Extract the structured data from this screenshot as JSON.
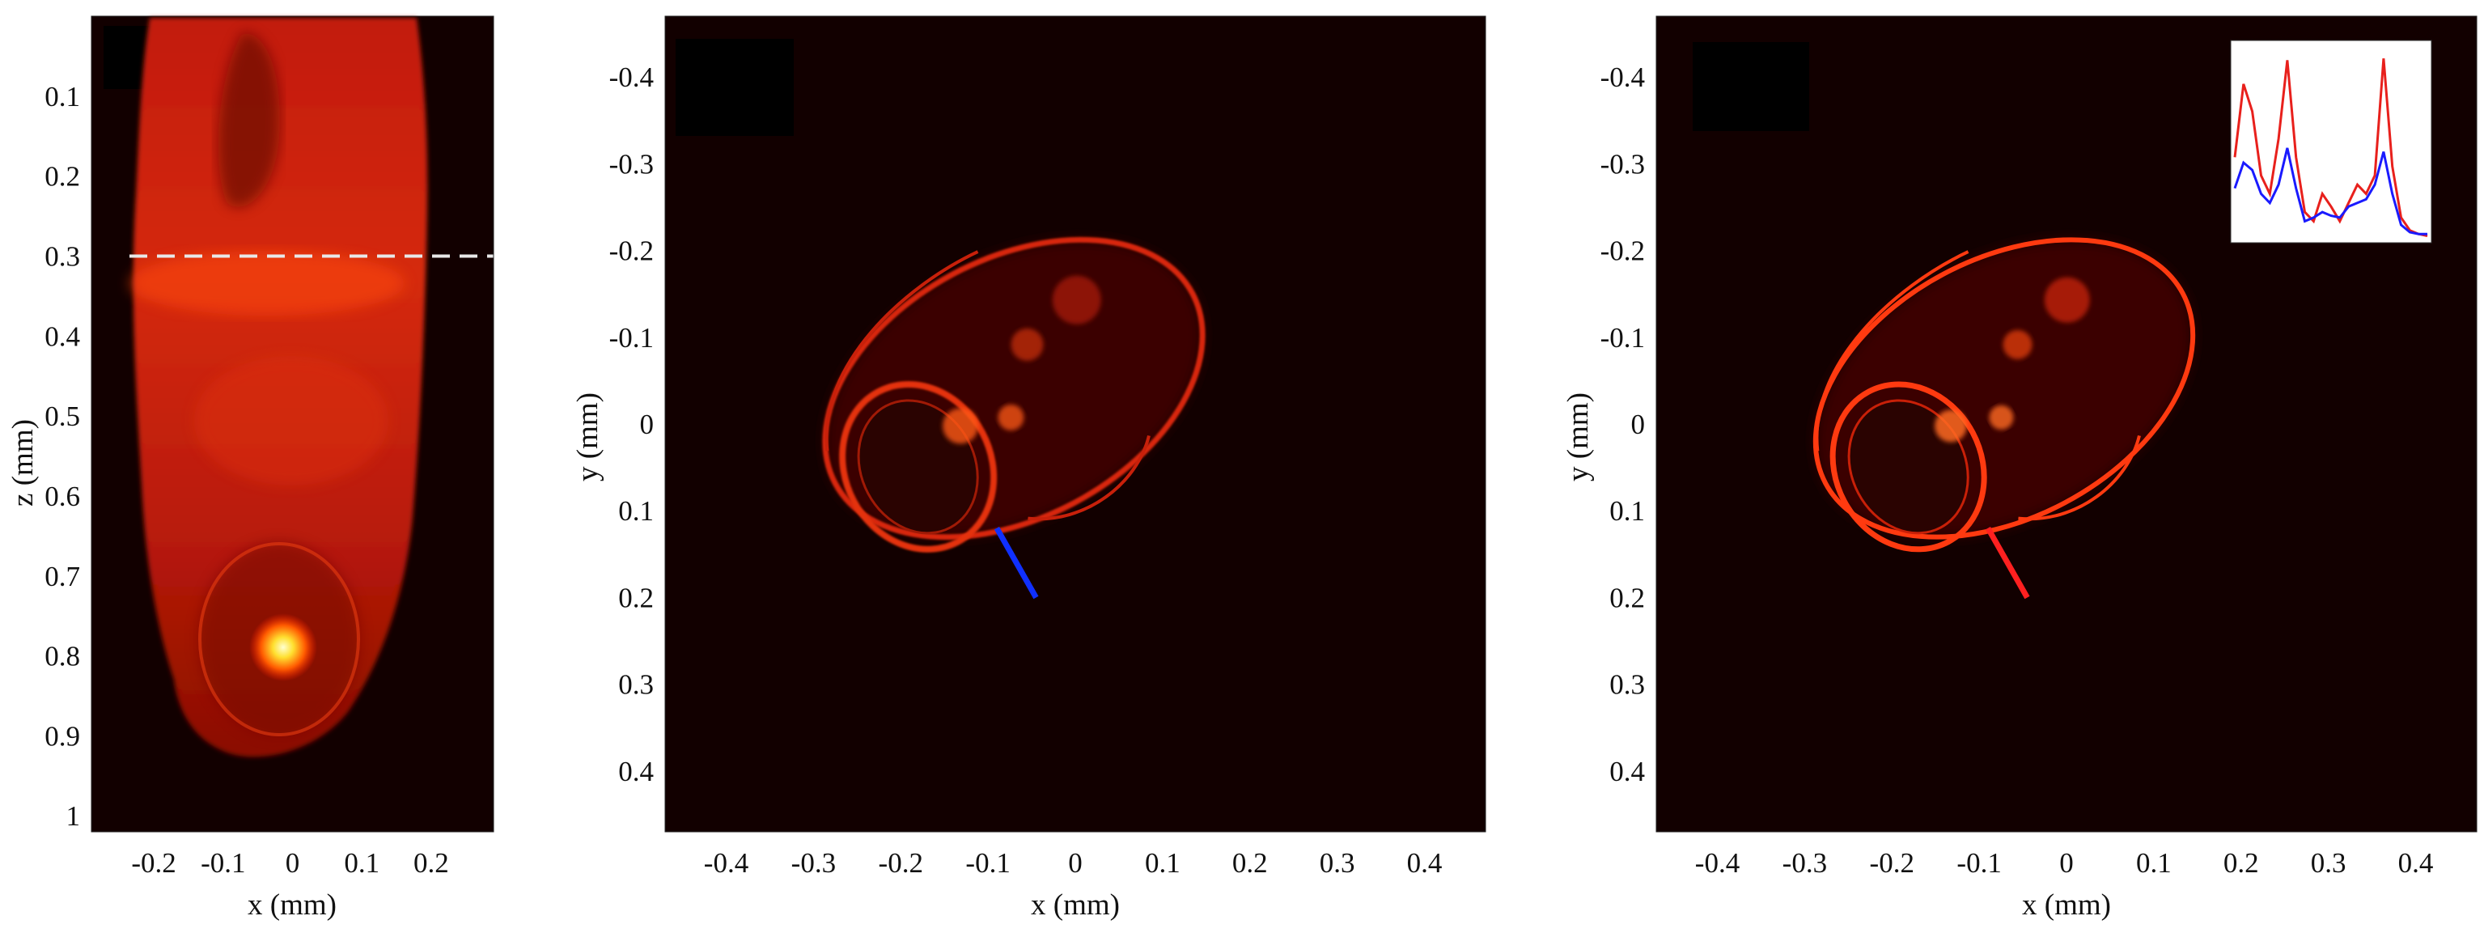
{
  "panels": [
    {
      "id": "panel-left",
      "xlabel": "x (mm)",
      "ylabel": "z (mm)",
      "x_ticks": [
        "-0.2",
        "-0.1",
        "0",
        "0.1",
        "0.2"
      ],
      "y_ticks": [
        "0.1",
        "0.2",
        "0.3",
        "0.4",
        "0.5",
        "0.6",
        "0.7",
        "0.8",
        "0.9",
        "1"
      ],
      "x_tick_values": [
        -0.2,
        -0.1,
        0,
        0.1,
        0.2
      ],
      "y_tick_values": [
        0.1,
        0.2,
        0.3,
        0.4,
        0.5,
        0.6,
        0.7,
        0.8,
        0.9,
        1.0
      ],
      "xlim": [
        -0.29,
        0.29
      ],
      "ylim": [
        0.0,
        1.02
      ],
      "dashed_line_z": 0.3,
      "dashed_line_color": "#e8e8e8"
    },
    {
      "id": "panel-middle",
      "xlabel": "x (mm)",
      "ylabel": "y (mm)",
      "x_ticks": [
        "-0.4",
        "-0.3",
        "-0.2",
        "-0.1",
        "0",
        "0.1",
        "0.2",
        "0.3",
        "0.4"
      ],
      "y_ticks": [
        "-0.4",
        "-0.3",
        "-0.2",
        "-0.1",
        "0",
        "0.1",
        "0.2",
        "0.3",
        "0.4"
      ],
      "x_tick_values": [
        -0.4,
        -0.3,
        -0.2,
        -0.1,
        0,
        0.1,
        0.2,
        0.3,
        0.4
      ],
      "y_tick_values": [
        -0.4,
        -0.3,
        -0.2,
        -0.1,
        0,
        0.1,
        0.2,
        0.3,
        0.4
      ],
      "xlim": [
        -0.47,
        0.47
      ],
      "ylim": [
        -0.47,
        0.47
      ],
      "profile_line": {
        "color": "#1030ff",
        "from": [
          -0.09,
          0.12
        ],
        "to": [
          -0.045,
          0.2
        ]
      }
    },
    {
      "id": "panel-right",
      "xlabel": "x (mm)",
      "ylabel": "y (mm)",
      "x_ticks": [
        "-0.4",
        "-0.3",
        "-0.2",
        "-0.1",
        "0",
        "0.1",
        "0.2",
        "0.3",
        "0.4"
      ],
      "y_ticks": [
        "-0.4",
        "-0.3",
        "-0.2",
        "-0.1",
        "0",
        "0.1",
        "0.2",
        "0.3",
        "0.4"
      ],
      "x_tick_values": [
        -0.4,
        -0.3,
        -0.2,
        -0.1,
        0,
        0.1,
        0.2,
        0.3,
        0.4
      ],
      "y_tick_values": [
        -0.4,
        -0.3,
        -0.2,
        -0.1,
        0,
        0.1,
        0.2,
        0.3,
        0.4
      ],
      "xlim": [
        -0.47,
        0.47
      ],
      "ylim": [
        -0.47,
        0.47
      ],
      "profile_line": {
        "color": "#ff2020",
        "from": [
          -0.09,
          0.12
        ],
        "to": [
          -0.045,
          0.2
        ]
      }
    }
  ],
  "inset": {
    "red_profile": [
      0.45,
      0.85,
      0.7,
      0.35,
      0.25,
      0.55,
      0.98,
      0.45,
      0.15,
      0.1,
      0.25,
      0.18,
      0.1,
      0.2,
      0.3,
      0.25,
      0.35,
      0.99,
      0.4,
      0.12,
      0.05,
      0.03,
      0.02
    ],
    "blue_profile": [
      0.28,
      0.42,
      0.38,
      0.25,
      0.2,
      0.3,
      0.5,
      0.28,
      0.1,
      0.12,
      0.15,
      0.13,
      0.12,
      0.18,
      0.2,
      0.22,
      0.3,
      0.48,
      0.25,
      0.08,
      0.04,
      0.03,
      0.03
    ],
    "red_color": "#e8201c",
    "blue_color": "#1a1aff"
  },
  "colors": {
    "image_background": "#120000",
    "accent_red": "#ff2a00",
    "hot_spot": "#ffff80"
  }
}
